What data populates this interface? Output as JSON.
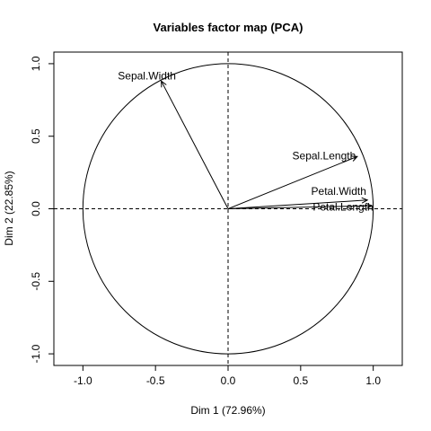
{
  "chart_data": {
    "type": "scatter",
    "title": "Variables factor map (PCA)",
    "xlabel": "Dim 1 (72.96%)",
    "ylabel": "Dim 2 (22.85%)",
    "xlim": [
      -1.2,
      1.2
    ],
    "ylim": [
      -1.08,
      1.08
    ],
    "x_ticks": [
      -1.0,
      -0.5,
      0.0,
      0.5,
      1.0
    ],
    "y_ticks": [
      -1.0,
      -0.5,
      0.0,
      0.5,
      1.0
    ],
    "x_tick_labels": [
      "-1.0",
      "-0.5",
      "0.0",
      "0.5",
      "1.0"
    ],
    "y_tick_labels": [
      "-1.0",
      "-0.5",
      "0.0",
      "0.5",
      "1.0"
    ],
    "unit_circle": true,
    "reference_lines": {
      "x": 0,
      "y": 0,
      "style": "dashed"
    },
    "variables": [
      {
        "name": "Sepal.Length",
        "x": 0.89,
        "y": 0.36
      },
      {
        "name": "Sepal.Width",
        "x": -0.46,
        "y": 0.88
      },
      {
        "name": "Petal.Length",
        "x": 0.99,
        "y": 0.02
      },
      {
        "name": "Petal.Width",
        "x": 0.96,
        "y": 0.06
      }
    ]
  }
}
